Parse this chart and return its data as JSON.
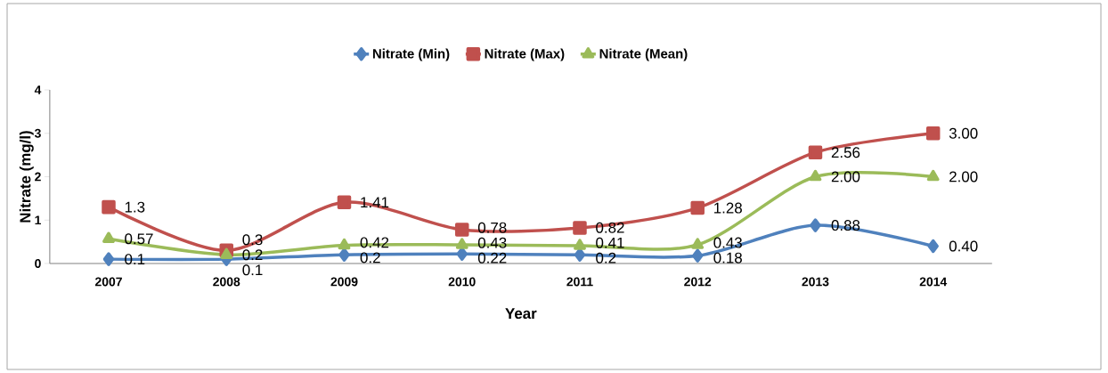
{
  "chart_data": {
    "type": "line",
    "xlabel": "Year",
    "ylabel": "Nitrate (mg/l)",
    "categories": [
      "2007",
      "2008",
      "2009",
      "2010",
      "2011",
      "2012",
      "2013",
      "2014"
    ],
    "ylim": [
      0,
      4
    ],
    "yticks": [
      0,
      1,
      2,
      3,
      4
    ],
    "grid": false,
    "legend": "top",
    "line_style": "solid",
    "series": [
      {
        "name": "Nitrate (Min)",
        "color": "#4f81bd",
        "marker": "diamond",
        "values": [
          0.1,
          0.1,
          0.2,
          0.22,
          0.2,
          0.18,
          0.88,
          0.4
        ],
        "value_labels": [
          "0.1",
          "0.1",
          "0.2",
          "0.22",
          "0.2",
          "0.18",
          "0.88",
          "0.40"
        ]
      },
      {
        "name": "Nitrate (Max)",
        "color": "#c0504d",
        "marker": "square",
        "values": [
          1.3,
          0.3,
          1.41,
          0.78,
          0.82,
          1.28,
          2.56,
          3.0
        ],
        "value_labels": [
          "1.3",
          "0.3",
          "1.41",
          "0.78",
          "0.82",
          "1.28",
          "2.56",
          "3.00"
        ]
      },
      {
        "name": "Nitrate (Mean)",
        "color": "#9bbb59",
        "marker": "triangle",
        "values": [
          0.57,
          0.2,
          0.42,
          0.43,
          0.41,
          0.43,
          2.0,
          2.0
        ],
        "value_labels": [
          "0.57",
          "0.2",
          "0.42",
          "0.43",
          "0.41",
          "0.43",
          "2.00",
          "2.00"
        ]
      }
    ]
  }
}
